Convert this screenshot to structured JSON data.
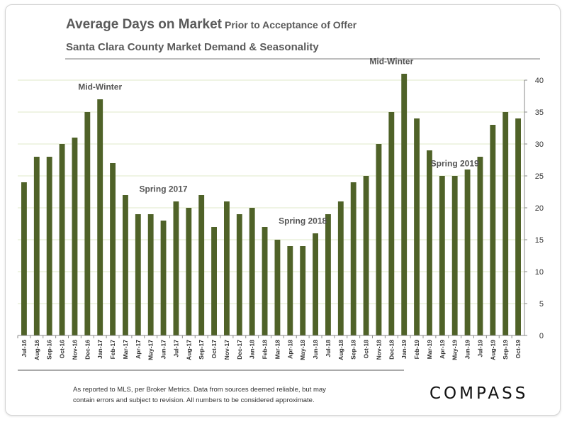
{
  "header": {
    "title": "Average Days on Market",
    "title_suffix": "Prior to Acceptance of Offer",
    "subtitle": "Santa Clara County Market Demand & Seasonality"
  },
  "footer": {
    "note_line1": "As reported to MLS, per Broker Metrics. Data from sources deemed reliable, but may",
    "note_line2": "contain errors and subject to revision. All numbers to be considered approximate.",
    "brand": "COMPASS"
  },
  "chart_data": {
    "type": "bar",
    "title": "Average Days on Market",
    "categories": [
      "Jul-16",
      "Aug-16",
      "Sep-16",
      "Oct-16",
      "Nov-16",
      "Dec-16",
      "Jan-17",
      "Feb-17",
      "Mar-17",
      "Apr-17",
      "May-17",
      "Jun-17",
      "Jul-17",
      "Aug-17",
      "Sep-17",
      "Oct-17",
      "Nov-17",
      "Dec-17",
      "Jan-18",
      "Feb-18",
      "Mar-18",
      "Apr-18",
      "May-18",
      "Jun-18",
      "Jul-18",
      "Aug-18",
      "Sep-18",
      "Oct-18",
      "Nov-18",
      "Dec-18",
      "Jan-19",
      "Feb-19",
      "Mar-19",
      "Apr-19",
      "May-19",
      "Jun-19",
      "Jul-19",
      "Aug-19",
      "Sep-19",
      "Oct-19"
    ],
    "values": [
      24,
      28,
      28,
      30,
      31,
      35,
      37,
      27,
      22,
      19,
      19,
      18,
      21,
      20,
      22,
      17,
      21,
      19,
      20,
      17,
      15,
      14,
      14,
      16,
      19,
      21,
      24,
      25,
      30,
      35,
      41,
      34,
      29,
      25,
      25,
      26,
      28,
      33,
      35,
      34
    ],
    "ylim": [
      0,
      40
    ],
    "yticks": [
      0,
      5,
      10,
      15,
      20,
      25,
      30,
      35,
      40
    ],
    "y_axis_side": "right",
    "grid": true,
    "bar_color": "#4f6228",
    "annotations": [
      {
        "text": "Mid-Winter",
        "category": "Jan-17",
        "value": 38.5
      },
      {
        "text": "Spring 2017",
        "category": "Jun-17",
        "value": 22.5
      },
      {
        "text": "Spring 2018",
        "category": "May-18",
        "value": 17.5
      },
      {
        "text": "Mid-Winter",
        "category": "Dec-18",
        "value": 42.5
      },
      {
        "text": "Spring 2019",
        "category": "May-19",
        "value": 26.5
      }
    ]
  }
}
